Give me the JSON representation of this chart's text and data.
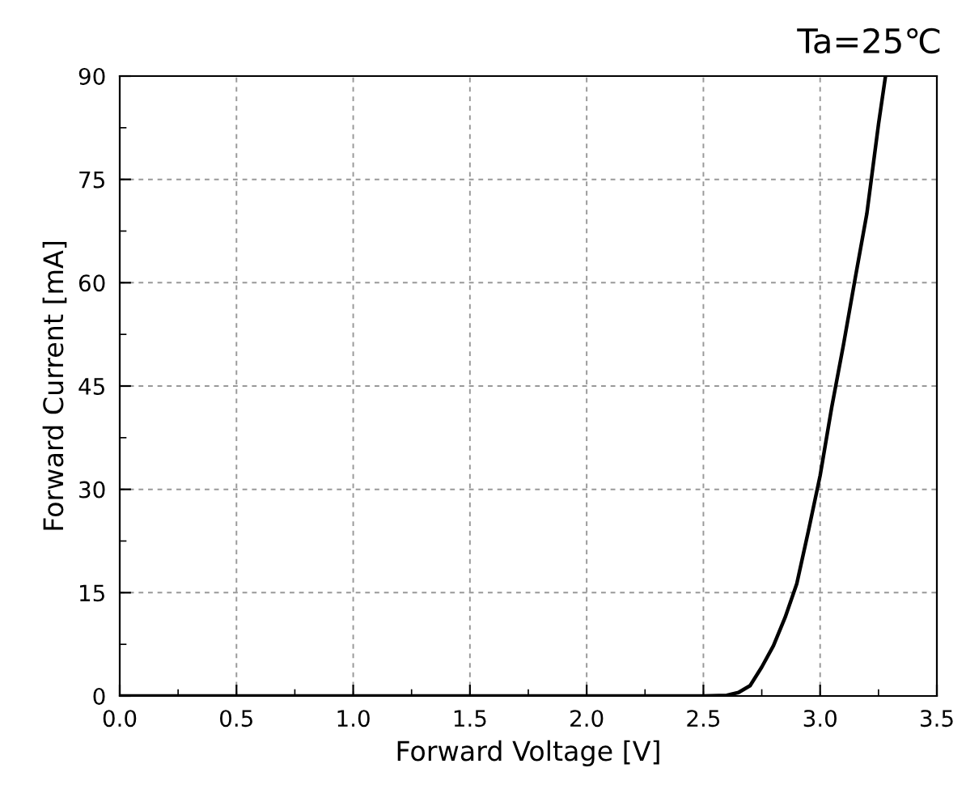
{
  "chart_data": {
    "type": "line",
    "title": "Ta=25℃",
    "xlabel": "Forward Voltage [V]",
    "ylabel": "Forward Current [mA]",
    "x": [
      0,
      0.5,
      1.0,
      1.5,
      2.0,
      2.5,
      2.6,
      2.65,
      2.7,
      2.75,
      2.8,
      2.85,
      2.9,
      2.95,
      3.0,
      3.05,
      3.1,
      3.15,
      3.2,
      3.25,
      3.28
    ],
    "series": [
      {
        "color": "#000000",
        "values": [
          0,
          0,
          0,
          0,
          0,
          0,
          0.1,
          0.5,
          1.5,
          4.2,
          7.3,
          11.4,
          16.3,
          24,
          32,
          42,
          51,
          60.6,
          70,
          83,
          90
        ]
      }
    ],
    "xlim": [
      0.0,
      3.5
    ],
    "ylim": [
      0,
      90
    ],
    "xticks": [
      {
        "value": 0,
        "label": "0.0"
      },
      0.5,
      {
        "value": 1,
        "label": "1.0"
      },
      1.5,
      {
        "value": 2,
        "label": "2.0"
      },
      2.5,
      {
        "value": 3,
        "label": "3.0"
      },
      3.5
    ],
    "yticks": [
      0,
      15,
      30,
      45,
      60,
      75,
      90
    ],
    "grid": true,
    "line_style": "solid"
  }
}
